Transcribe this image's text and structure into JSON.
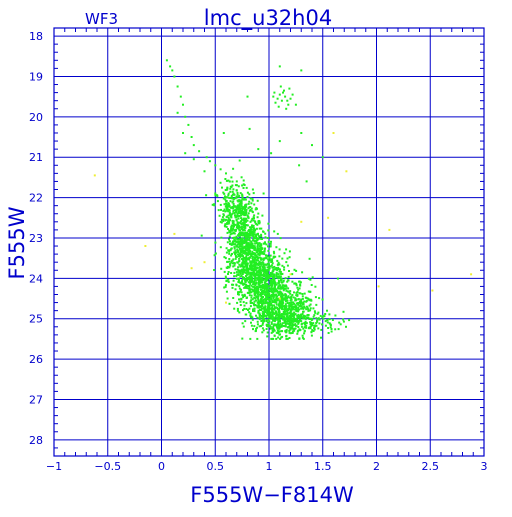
{
  "chart_data": {
    "type": "scatter",
    "title": "lmc_u32h04",
    "corner_label": "WF3",
    "xlabel": "F555W−F814W",
    "ylabel": "F555W",
    "xlim": [
      -1,
      3
    ],
    "ylim": [
      28.4,
      17.8
    ],
    "y_inverted": true,
    "grid": true,
    "x_ticks": [
      -1,
      -0.5,
      0,
      0.5,
      1,
      1.5,
      2,
      2.5,
      3
    ],
    "x_tick_labels": [
      "−1",
      "−0.5",
      "0",
      "0.5",
      "1",
      "1.5",
      "2",
      "2.5",
      "3"
    ],
    "y_ticks": [
      18,
      19,
      20,
      21,
      22,
      23,
      24,
      25,
      26,
      27,
      28
    ],
    "y_tick_labels": [
      "18",
      "19",
      "20",
      "21",
      "22",
      "23",
      "24",
      "25",
      "26",
      "27",
      "28"
    ],
    "colors": {
      "axes": "#0000cc",
      "main_points": "#22ee22",
      "outlier_points": "#eeee33",
      "background": "#ffffff"
    },
    "series": [
      {
        "points": [
          [
            0.05,
            18.6
          ],
          [
            0.08,
            18.75
          ],
          [
            0.1,
            18.85
          ],
          [
            0.12,
            19.0
          ],
          [
            0.15,
            19.25
          ],
          [
            0.18,
            19.5
          ],
          [
            0.2,
            19.7
          ],
          [
            0.15,
            19.9
          ],
          [
            0.22,
            20.0
          ],
          [
            0.25,
            20.2
          ],
          [
            0.2,
            20.4
          ],
          [
            0.28,
            20.5
          ],
          [
            0.3,
            20.7
          ],
          [
            0.35,
            20.85
          ],
          [
            0.22,
            20.9
          ],
          [
            0.42,
            21.0
          ],
          [
            0.3,
            21.05
          ],
          [
            0.45,
            21.1
          ],
          [
            0.5,
            21.2
          ],
          [
            0.55,
            21.3
          ],
          [
            0.4,
            21.35
          ],
          [
            0.6,
            21.4
          ],
          [
            0.65,
            21.5
          ],
          [
            0.7,
            21.6
          ],
          [
            0.75,
            21.7
          ],
          [
            0.85,
            21.8
          ],
          [
            0.95,
            21.9
          ],
          [
            0.5,
            21.9
          ],
          [
            1.02,
            20.9
          ],
          [
            1.1,
            20.6
          ],
          [
            1.05,
            19.4
          ],
          [
            1.08,
            19.55
          ],
          [
            1.1,
            19.45
          ],
          [
            1.12,
            19.6
          ],
          [
            1.15,
            19.5
          ],
          [
            1.18,
            19.7
          ],
          [
            1.06,
            19.65
          ],
          [
            1.14,
            19.35
          ],
          [
            1.2,
            19.55
          ],
          [
            1.09,
            19.75
          ],
          [
            1.11,
            19.25
          ],
          [
            1.16,
            19.8
          ],
          [
            1.04,
            19.5
          ],
          [
            1.13,
            19.4
          ],
          [
            1.17,
            19.6
          ],
          [
            1.22,
            19.45
          ],
          [
            1.25,
            19.7
          ],
          [
            1.19,
            19.3
          ],
          [
            1.3,
            18.85
          ],
          [
            1.1,
            18.75
          ],
          [
            0.8,
            19.5
          ],
          [
            0.82,
            20.3
          ],
          [
            0.9,
            20.8
          ],
          [
            1.3,
            20.4
          ],
          [
            1.4,
            20.7
          ],
          [
            1.28,
            21.2
          ],
          [
            1.35,
            21.6
          ],
          [
            1.5,
            21.0
          ],
          [
            0.58,
            20.4
          ]
        ]
      },
      {
        "points": [
          [
            -0.62,
            21.45
          ],
          [
            -0.15,
            23.2
          ],
          [
            0.12,
            22.9
          ],
          [
            0.4,
            23.6
          ],
          [
            0.6,
            24.6
          ],
          [
            1.1,
            24.5
          ],
          [
            1.2,
            23.9
          ],
          [
            1.6,
            20.4
          ],
          [
            1.72,
            21.35
          ],
          [
            2.12,
            22.8
          ],
          [
            2.52,
            24.3
          ],
          [
            2.88,
            23.9
          ],
          [
            2.02,
            24.2
          ],
          [
            1.55,
            22.5
          ],
          [
            1.3,
            22.6
          ],
          [
            0.28,
            23.75
          ]
        ]
      }
    ],
    "density_regions": [
      {
        "x_mean": 0.72,
        "x_sd": 0.08,
        "y_mean": 22.3,
        "y_sd": 0.35,
        "share": 0.12
      },
      {
        "x_mean": 0.75,
        "x_sd": 0.1,
        "y_mean": 23.2,
        "y_sd": 0.45,
        "share": 0.22
      },
      {
        "x_mean": 0.82,
        "x_sd": 0.13,
        "y_mean": 24.0,
        "y_sd": 0.45,
        "share": 0.3
      },
      {
        "x_mean": 0.98,
        "x_sd": 0.16,
        "y_mean": 24.7,
        "y_sd": 0.35,
        "share": 0.28
      },
      {
        "x_mean": 1.15,
        "x_sd": 0.18,
        "y_mean": 25.1,
        "y_sd": 0.15,
        "share": 0.08
      }
    ],
    "density_point_count": 2600
  }
}
